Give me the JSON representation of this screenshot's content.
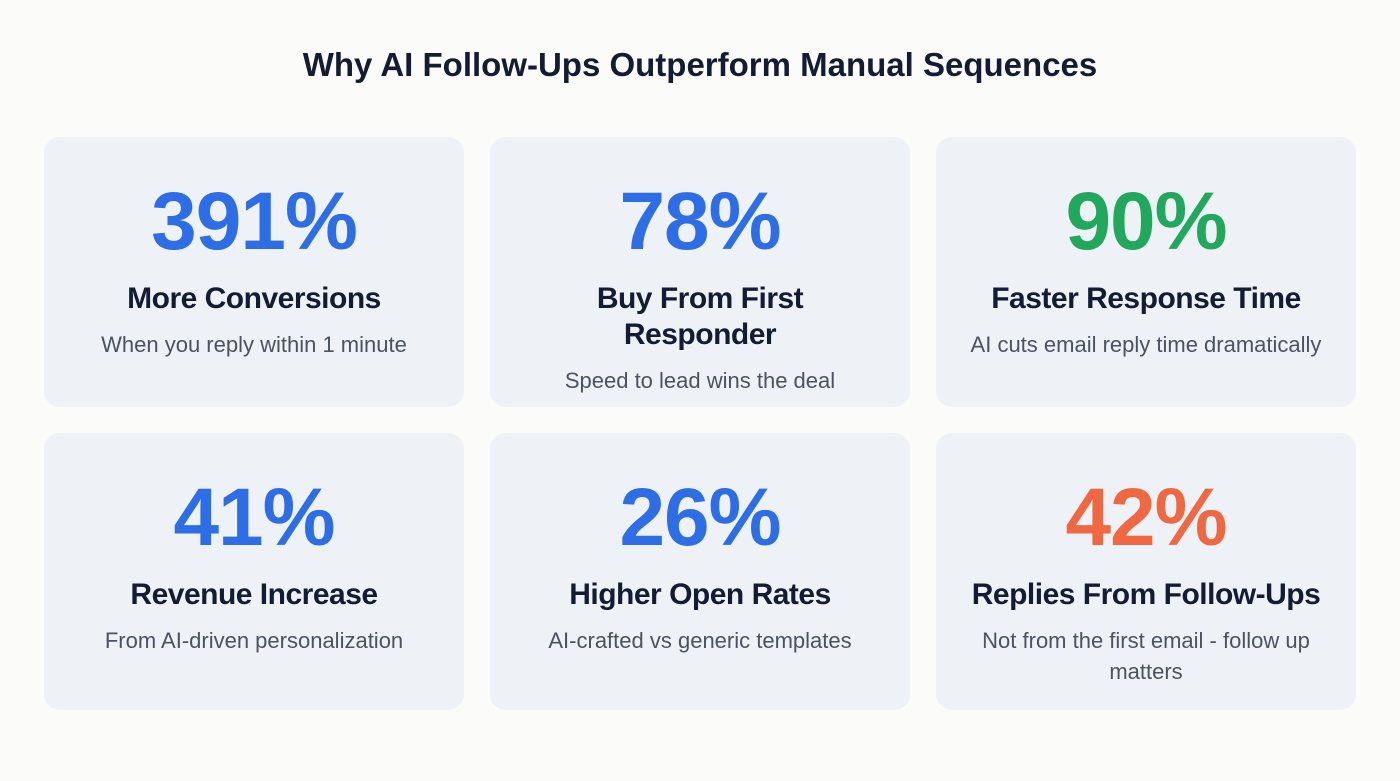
{
  "title": "Why AI Follow-Ups Outperform Manual Sequences",
  "cards": [
    {
      "stat": "391%",
      "label": "More Conversions",
      "description": "When you reply within 1 minute",
      "color": "#2d6ee6"
    },
    {
      "stat": "78%",
      "label": "Buy From First Responder",
      "description": "Speed to lead wins the deal",
      "color": "#2d6ee6"
    },
    {
      "stat": "90%",
      "label": "Faster Response Time",
      "description": "AI cuts email reply time dramatically",
      "color": "#22a85c"
    },
    {
      "stat": "41%",
      "label": "Revenue Increase",
      "description": "From AI-driven personalization",
      "color": "#2d6ee6"
    },
    {
      "stat": "26%",
      "label": "Higher Open Rates",
      "description": "AI-crafted vs generic templates",
      "color": "#2d6ee6"
    },
    {
      "stat": "42%",
      "label": "Replies From Follow-Ups",
      "description": "Not from the first email - follow up matters",
      "color": "#f06842"
    }
  ]
}
